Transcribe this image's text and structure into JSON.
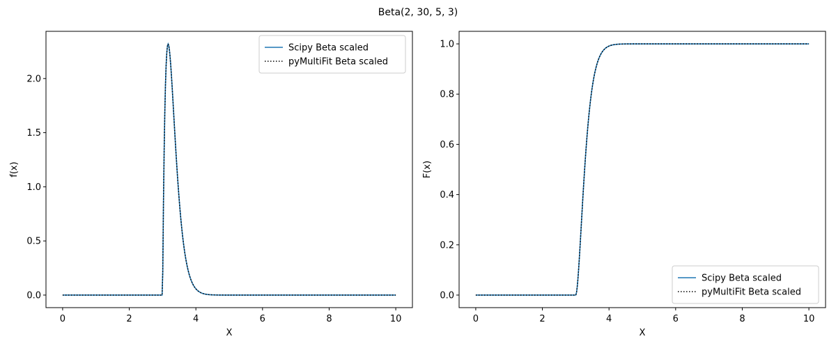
{
  "figure": {
    "suptitle": "Beta(2, 30, 5, 3)"
  },
  "colors": {
    "scipy_line": "#1f77b4",
    "pymultifit_line": "#000000"
  },
  "chart_data": [
    {
      "type": "line",
      "xlabel": "X",
      "ylabel": "f(x)",
      "xlim": [
        -0.5,
        10.5
      ],
      "ylim": [
        -0.116,
        2.436
      ],
      "xticks": [
        0,
        2,
        4,
        6,
        8,
        10
      ],
      "xtick_labels": [
        "0",
        "2",
        "4",
        "6",
        "8",
        "10"
      ],
      "yticks": [
        0.0,
        0.5,
        1.0,
        1.5,
        2.0
      ],
      "ytick_labels": [
        "0.0",
        "0.5",
        "1.0",
        "1.5",
        "2.0"
      ],
      "grid": false,
      "legend_position": "top-right",
      "function": "pdf",
      "distribution": {
        "alpha": 2,
        "beta": 30,
        "loc": 3,
        "scale": 5
      },
      "x_range": [
        0,
        10
      ],
      "samples": 500,
      "series": [
        {
          "name": "Scipy Beta scaled",
          "style": "solid",
          "color": "#1f77b4"
        },
        {
          "name": "pyMultiFit Beta scaled",
          "style": "dotted",
          "color": "#000000"
        }
      ],
      "key_points": [
        {
          "x": 0,
          "y": 0.0
        },
        {
          "x": 3.0,
          "y": 0.0
        },
        {
          "x": 3.17,
          "y": 2.32
        },
        {
          "x": 4.5,
          "y": 0.0
        },
        {
          "x": 10,
          "y": 0.0
        }
      ]
    },
    {
      "type": "line",
      "xlabel": "X",
      "ylabel": "F(x)",
      "xlim": [
        -0.5,
        10.5
      ],
      "ylim": [
        -0.05,
        1.05
      ],
      "xticks": [
        0,
        2,
        4,
        6,
        8,
        10
      ],
      "xtick_labels": [
        "0",
        "2",
        "4",
        "6",
        "8",
        "10"
      ],
      "yticks": [
        0.0,
        0.2,
        0.4,
        0.6,
        0.8,
        1.0
      ],
      "ytick_labels": [
        "0.0",
        "0.2",
        "0.4",
        "0.6",
        "0.8",
        "1.0"
      ],
      "grid": false,
      "legend_position": "bottom-right",
      "function": "cdf",
      "distribution": {
        "alpha": 2,
        "beta": 30,
        "loc": 3,
        "scale": 5
      },
      "x_range": [
        0,
        10
      ],
      "samples": 500,
      "series": [
        {
          "name": "Scipy Beta scaled",
          "style": "solid",
          "color": "#1f77b4"
        },
        {
          "name": "pyMultiFit Beta scaled",
          "style": "dotted",
          "color": "#000000"
        }
      ],
      "key_points": [
        {
          "x": 0,
          "y": 0.0
        },
        {
          "x": 3.0,
          "y": 0.0
        },
        {
          "x": 4.0,
          "y": 0.99
        },
        {
          "x": 10,
          "y": 1.0
        }
      ]
    }
  ]
}
